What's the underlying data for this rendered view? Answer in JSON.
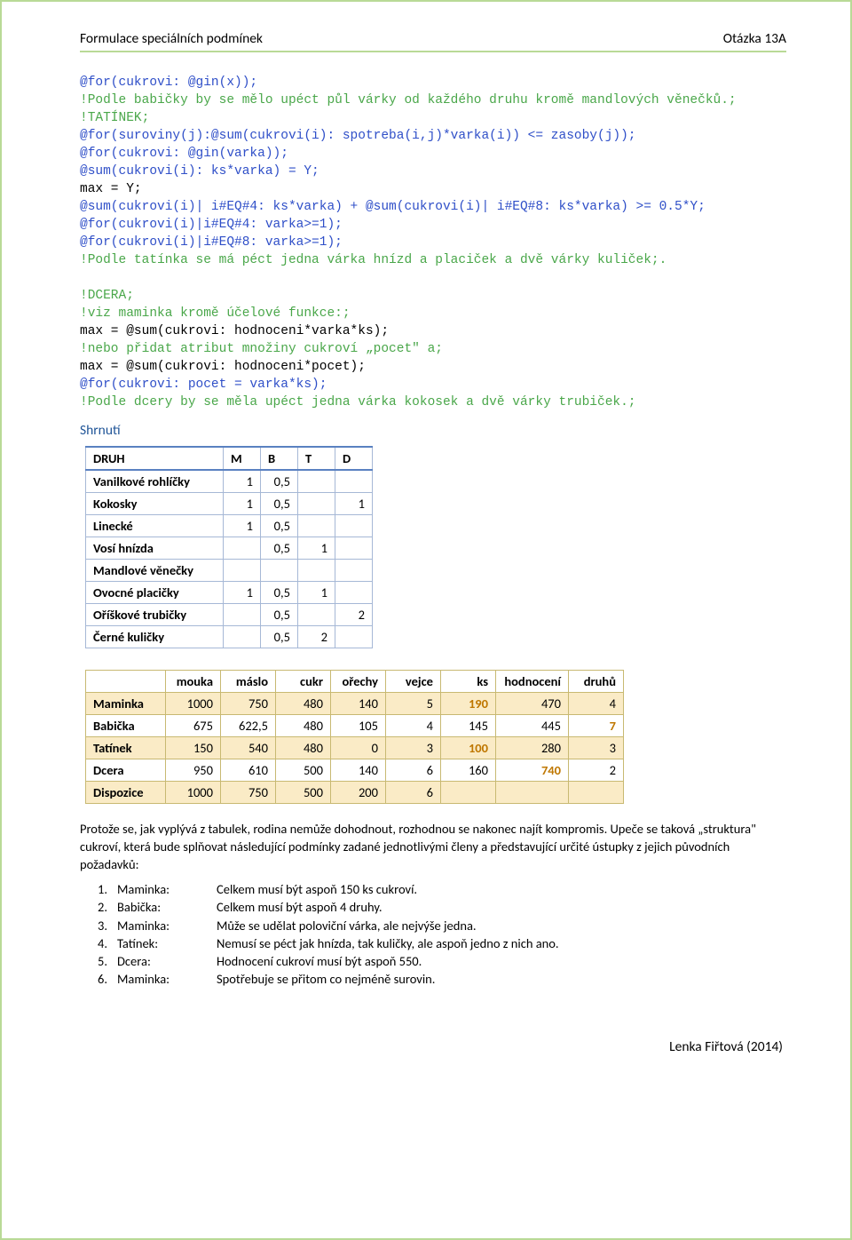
{
  "header": {
    "left": "Formulace speciálních podmínek",
    "right": "Otázka 13A"
  },
  "code_lines": [
    {
      "text": "@for(cukrovi: @gin(x));",
      "cls": "blue"
    },
    {
      "text": "!Podle babičky by se mělo upéct půl várky od každého druhu kromě mandlových věnečků.;",
      "cls": "green"
    },
    {
      "text": "!TATÍNEK;",
      "cls": "green"
    },
    {
      "text": "@for(suroviny(j):@sum(cukrovi(i): spotreba(i,j)*varka(i)) <= zasoby(j));",
      "cls": "blue"
    },
    {
      "text": "@for(cukrovi: @gin(varka));",
      "cls": "blue"
    },
    {
      "text": "@sum(cukrovi(i): ks*varka) = Y;",
      "cls": "blue"
    },
    {
      "text": "max = Y;",
      "cls": "black"
    },
    {
      "text": "@sum(cukrovi(i)| i#EQ#4: ks*varka) + @sum(cukrovi(i)| i#EQ#8: ks*varka) >= 0.5*Y;",
      "cls": "blue"
    },
    {
      "text": "@for(cukrovi(i)|i#EQ#4: varka>=1);",
      "cls": "blue"
    },
    {
      "text": "@for(cukrovi(i)|i#EQ#8: varka>=1);",
      "cls": "blue"
    },
    {
      "text": "!Podle tatínka se má péct jedna várka hnízd a placiček a dvě várky kuliček;.",
      "cls": "green"
    },
    {
      "text": "",
      "cls": "black"
    },
    {
      "text": "!DCERA;",
      "cls": "green"
    },
    {
      "text": "!viz maminka kromě účelové funkce:;",
      "cls": "green"
    },
    {
      "text": "max = @sum(cukrovi: hodnoceni*varka*ks);",
      "cls": "black"
    },
    {
      "text": "!nebo přidat atribut množiny cukroví „pocet\" a;",
      "cls": "green"
    },
    {
      "text": "max = @sum(cukrovi: hodnoceni*pocet);",
      "cls": "black"
    },
    {
      "text": "@for(cukrovi: pocet = varka*ks);",
      "cls": "blue"
    },
    {
      "text": "!Podle dcery by se měla upéct jedna várka kokosek a dvě várky trubiček.;",
      "cls": "green"
    }
  ],
  "shrnuti_label": "Shrnutí",
  "table1": {
    "columns": [
      "DRUH",
      "M",
      "B",
      "T",
      "D"
    ],
    "rows": [
      [
        "Vanilkové rohlíčky",
        "1",
        "0,5",
        "",
        ""
      ],
      [
        "Kokosky",
        "1",
        "0,5",
        "",
        "1"
      ],
      [
        "Linecké",
        "1",
        "0,5",
        "",
        ""
      ],
      [
        "Vosí hnízda",
        "",
        "0,5",
        "1",
        ""
      ],
      [
        "Mandlové věnečky",
        "",
        "",
        "",
        ""
      ],
      [
        "Ovocné placičky",
        "1",
        "0,5",
        "1",
        ""
      ],
      [
        "Oříškové trubičky",
        "",
        "0,5",
        "",
        "2"
      ],
      [
        "Černé kuličky",
        "",
        "0,5",
        "2",
        ""
      ]
    ]
  },
  "table2": {
    "columns": [
      "",
      "mouka",
      "máslo",
      "cukr",
      "ořechy",
      "vejce",
      "ks",
      "hodnocení",
      "druhů"
    ],
    "rows": [
      {
        "cells": [
          "Maminka",
          "1000",
          "750",
          "480",
          "140",
          "5",
          "190",
          "470",
          "4"
        ],
        "stripe": true,
        "hi": [
          6
        ]
      },
      {
        "cells": [
          "Babička",
          "675",
          "622,5",
          "480",
          "105",
          "4",
          "145",
          "445",
          "7"
        ],
        "stripe": false,
        "hi": [
          8
        ]
      },
      {
        "cells": [
          "Tatínek",
          "150",
          "540",
          "480",
          "0",
          "3",
          "100",
          "280",
          "3"
        ],
        "stripe": true,
        "hi": [
          6
        ]
      },
      {
        "cells": [
          "Dcera",
          "950",
          "610",
          "500",
          "140",
          "6",
          "160",
          "740",
          "2"
        ],
        "stripe": false,
        "hi": [
          7
        ]
      },
      {
        "cells": [
          "Dispozice",
          "1000",
          "750",
          "500",
          "200",
          "6",
          "",
          "",
          ""
        ],
        "stripe": true,
        "hi": []
      }
    ]
  },
  "para1": "Protože se, jak vyplývá z tabulek, rodina nemůže dohodnout, rozhodnou se nakonec najít kompromis. Upeče se taková „struktura\" cukroví, která bude splňovat následující podmínky zadané jednotlivými členy a představující určité ústupky z jejich původních požadavků:",
  "reqs": [
    {
      "idx": "1.",
      "who": "Maminka:",
      "txt": "Celkem musí být aspoň 150 ks cukroví."
    },
    {
      "idx": "2.",
      "who": "Babička:",
      "txt": "Celkem musí být aspoň 4 druhy."
    },
    {
      "idx": "3.",
      "who": "Maminka:",
      "txt": "Může se udělat poloviční várka, ale nejvýše jedna."
    },
    {
      "idx": "4.",
      "who": "Tatínek:",
      "txt": "Nemusí se péct jak hnízda, tak kuličky, ale aspoň jedno z nich ano."
    },
    {
      "idx": "5.",
      "who": "Dcera:",
      "txt": "Hodnocení cukroví musí být aspoň 550."
    },
    {
      "idx": "6.",
      "who": "Maminka:",
      "txt": "Spotřebuje se přitom co nejméně surovin."
    }
  ],
  "footer": "Lenka Fiřtová (2014)"
}
